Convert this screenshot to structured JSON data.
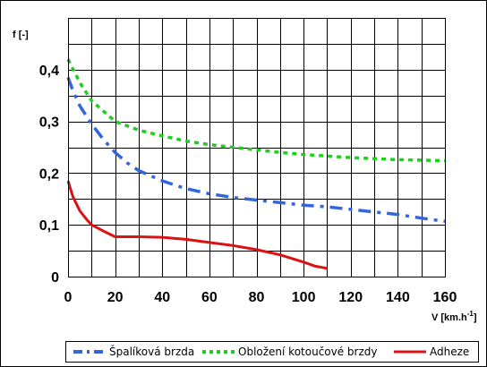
{
  "chart_data": {
    "type": "line",
    "ylabel": "f [-]",
    "xlabel": "V [km.h",
    "xlabel_sup": "-1",
    "xlabel_close": "]",
    "xlim": [
      0,
      160
    ],
    "ylim": [
      0,
      0.5
    ],
    "x_ticks": [
      0,
      20,
      40,
      60,
      80,
      100,
      120,
      140,
      160
    ],
    "x_tick_labels": [
      "0",
      "20",
      "40",
      "60",
      "80",
      "100",
      "120",
      "140",
      "160"
    ],
    "y_ticks": [
      0,
      0.1,
      0.2,
      0.3,
      0.4
    ],
    "y_tick_labels": [
      "0",
      "0,1",
      "0,2",
      "0,3",
      "0,4"
    ],
    "grid": true,
    "legend_position": "bottom",
    "series": [
      {
        "name": "Špalíková brzda",
        "color": "#3366dd",
        "style": "dash-dot",
        "x": [
          0,
          2,
          5,
          10,
          15,
          20,
          25,
          30,
          40,
          50,
          60,
          70,
          80,
          90,
          100,
          110,
          120,
          130,
          140,
          150,
          160
        ],
        "y": [
          0.385,
          0.36,
          0.33,
          0.295,
          0.265,
          0.24,
          0.22,
          0.205,
          0.185,
          0.17,
          0.16,
          0.153,
          0.148,
          0.143,
          0.138,
          0.135,
          0.13,
          0.125,
          0.12,
          0.113,
          0.107
        ]
      },
      {
        "name": "Obložení kotoučové brzdy",
        "color": "#22cc22",
        "style": "dotted",
        "x": [
          0,
          5,
          10,
          20,
          30,
          40,
          50,
          60,
          70,
          80,
          90,
          100,
          110,
          120,
          130,
          140,
          150,
          160
        ],
        "y": [
          0.42,
          0.375,
          0.34,
          0.3,
          0.283,
          0.272,
          0.262,
          0.255,
          0.25,
          0.245,
          0.24,
          0.236,
          0.233,
          0.23,
          0.228,
          0.226,
          0.225,
          0.224
        ]
      },
      {
        "name": "Adheze",
        "color": "#dd1111",
        "style": "solid",
        "x": [
          0,
          2,
          5,
          8,
          10,
          15,
          20,
          30,
          40,
          50,
          60,
          70,
          80,
          90,
          100,
          105,
          110
        ],
        "y": [
          0.185,
          0.155,
          0.127,
          0.11,
          0.1,
          0.088,
          0.077,
          0.077,
          0.076,
          0.072,
          0.066,
          0.06,
          0.052,
          0.042,
          0.028,
          0.02,
          0.016
        ]
      }
    ]
  }
}
